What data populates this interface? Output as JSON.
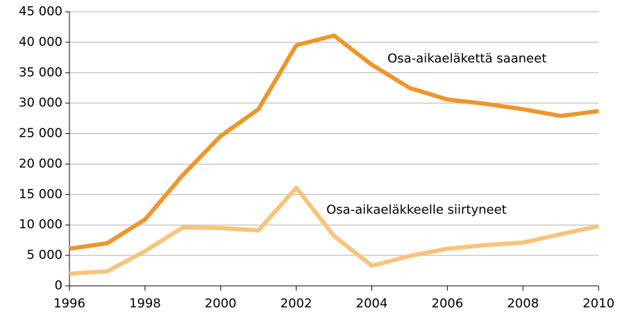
{
  "chart_data": {
    "type": "line",
    "x": [
      1996,
      1997,
      1998,
      1999,
      2000,
      2001,
      2002,
      2003,
      2004,
      2005,
      2006,
      2007,
      2008,
      2009,
      2010
    ],
    "series": [
      {
        "name": "Osa-aikaeläkettä saaneet",
        "color": "#f0952a",
        "values": [
          6100,
          7000,
          10900,
          18200,
          24600,
          29000,
          39500,
          41100,
          36300,
          32500,
          30600,
          29900,
          29000,
          27900,
          28700
        ]
      },
      {
        "name": "Osa-aikaeläkkeelle siirtyneet",
        "color": "#fbc27a",
        "values": [
          2000,
          2400,
          5700,
          9600,
          9500,
          9100,
          16100,
          8200,
          3300,
          4900,
          6100,
          6700,
          7100,
          8500,
          9800
        ]
      }
    ],
    "xlim": [
      1996,
      2010
    ],
    "xticks": [
      1996,
      1998,
      2000,
      2002,
      2004,
      2006,
      2008,
      2010
    ],
    "ylim": [
      0,
      45000
    ],
    "yticks": [
      0,
      {
        "value": 5000,
        "label": "5 000"
      },
      {
        "value": 10000,
        "label": "10 000"
      },
      {
        "value": 15000,
        "label": "15 000"
      },
      {
        "value": 20000,
        "label": "20 000"
      },
      {
        "value": 25000,
        "label": "25 000"
      },
      {
        "value": 30000,
        "label": "30 000"
      },
      {
        "value": 35000,
        "label": "35 000"
      },
      {
        "value": 40000,
        "label": "40 000"
      },
      {
        "value": 45000,
        "label": "45 000"
      }
    ],
    "grid": true
  }
}
